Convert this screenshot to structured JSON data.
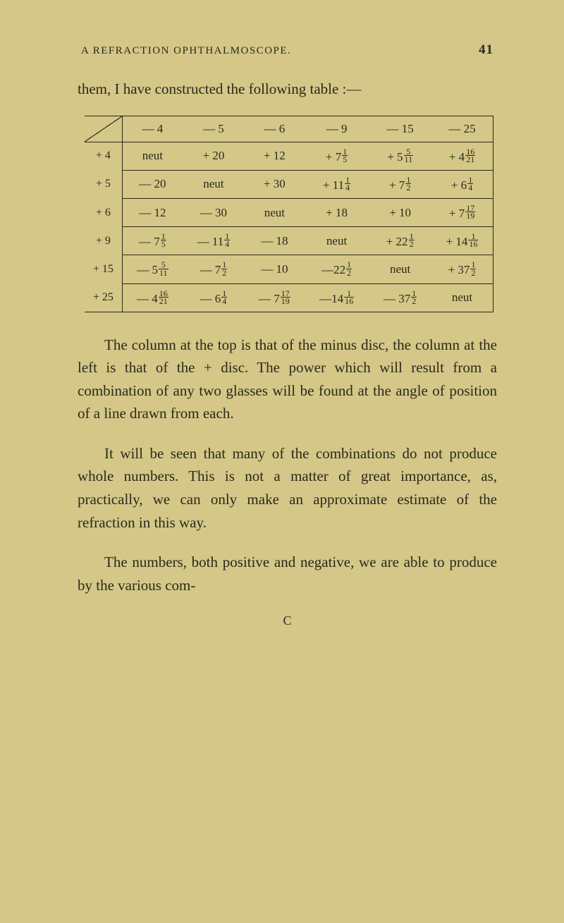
{
  "page": {
    "header_title": "A REFRACTION OPHTHALMOSCOPE.",
    "page_number": "41",
    "intro_line": "them, I have constructed the following table :—"
  },
  "table_data": {
    "col_headers": [
      "— 4",
      "— 5",
      "— 6",
      "— 9",
      "— 15",
      "— 25"
    ],
    "row_headers": [
      "+ 4",
      "+ 5",
      "+ 6",
      "+ 9",
      "+ 15",
      "+ 25"
    ],
    "row1": [
      "neut",
      "+ 20",
      "+ 12",
      "+ 7⅕",
      "+ 5 5/11",
      "+ 4 16/21"
    ],
    "row2": [
      "— 20",
      "neut",
      "+ 30",
      "+ 11¼",
      "+ 7½",
      "+ 6¼"
    ],
    "row3": [
      "— 12",
      "— 30",
      "neut",
      "+ 18",
      "+ 10",
      "+ 7 17/19"
    ],
    "row4": [
      "— 7⅕",
      "— 11¼",
      "— 18",
      "neut",
      "+ 22½",
      "+ 14 1/16"
    ],
    "row5": [
      "— 5 5/11",
      "— 7½",
      "— 10",
      "—22½",
      "neut",
      "+ 37½"
    ],
    "row6": [
      "— 4 16/21",
      "— 6¼",
      "— 7 17/19",
      "—14 1/16",
      "— 37½",
      "neut"
    ]
  },
  "body": {
    "p1": "The column at the top is that of the minus disc, the column at the left is that of the + disc. The power which will result from a combination of any two glasses will be found at the angle of position of a line drawn from each.",
    "p2": "It will be seen that many of the combinations do not produce whole numbers. This is not a matter of great importance, as, practically, we can only make an approximate estimate of the refraction in this way.",
    "p3": "The numbers, both positive and negative, we are able to produce by the various com-",
    "sig": "C"
  },
  "style": {
    "background_color": "#d4c788",
    "text_color": "#2a2a1a",
    "body_font_size": 21,
    "table_font_size": 17,
    "table_border_color": "#2a2a1a"
  }
}
